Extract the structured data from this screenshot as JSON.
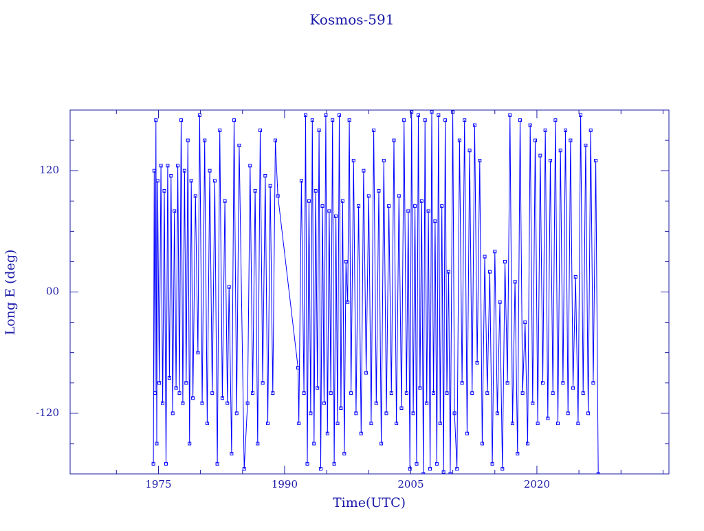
{
  "chart_data": {
    "type": "line",
    "title": "Kosmos-591",
    "xlabel": "Time(UTC)",
    "ylabel": "Long E (deg)",
    "xlim": [
      1964.5,
      2035.7
    ],
    "xticks": [
      1975,
      1990,
      2005,
      2020
    ],
    "xminorticks": [
      1970,
      1980,
      1985,
      1995,
      2000,
      2010,
      2015,
      2025,
      2030,
      2035
    ],
    "ylim": [
      -180,
      180
    ],
    "yticks": [
      -120,
      {
        "value": 0,
        "label": "00"
      },
      120
    ],
    "yminorticks": [
      -150,
      -90,
      -60,
      -30,
      30,
      60,
      90,
      150
    ],
    "x": [
      1974.4,
      1974.5,
      1974.6,
      1974.7,
      1974.8,
      1974.9,
      1975.1,
      1975.3,
      1975.5,
      1975.7,
      1975.9,
      1976.1,
      1976.3,
      1976.5,
      1976.7,
      1976.9,
      1977.1,
      1977.3,
      1977.5,
      1977.7,
      1977.9,
      1978.1,
      1978.3,
      1978.5,
      1978.7,
      1978.9,
      1979.1,
      1979.4,
      1979.7,
      1979.9,
      1980.2,
      1980.5,
      1980.8,
      1981.1,
      1981.4,
      1981.7,
      1982.0,
      1982.3,
      1982.6,
      1982.9,
      1983.2,
      1983.4,
      1983.7,
      1984.0,
      1984.3,
      1984.6,
      1985.2,
      1985.6,
      1985.9,
      1986.2,
      1986.5,
      1986.8,
      1987.1,
      1987.4,
      1987.7,
      1988.0,
      1988.3,
      1988.6,
      1988.9,
      1989.2,
      1991.6,
      1991.7,
      1992.0,
      1992.3,
      1992.5,
      1992.7,
      1992.9,
      1993.1,
      1993.3,
      1993.5,
      1993.7,
      1993.9,
      1994.1,
      1994.3,
      1994.5,
      1994.7,
      1994.9,
      1995.1,
      1995.3,
      1995.5,
      1995.7,
      1995.9,
      1996.1,
      1996.3,
      1996.5,
      1996.7,
      1996.9,
      1997.1,
      1997.3,
      1997.5,
      1997.7,
      1997.9,
      1998.2,
      1998.5,
      1998.8,
      1999.1,
      1999.4,
      1999.7,
      2000.0,
      2000.3,
      2000.6,
      2000.9,
      2001.2,
      2001.5,
      2001.8,
      2002.1,
      2002.4,
      2002.7,
      2003.0,
      2003.3,
      2003.6,
      2003.9,
      2004.2,
      2004.5,
      2004.7,
      2004.9,
      2005.1,
      2005.3,
      2005.5,
      2005.7,
      2005.9,
      2006.1,
      2006.3,
      2006.5,
      2006.7,
      2006.9,
      2007.1,
      2007.3,
      2007.5,
      2007.7,
      2007.9,
      2008.1,
      2008.3,
      2008.5,
      2008.7,
      2008.9,
      2009.1,
      2009.3,
      2009.5,
      2009.7,
      2010.0,
      2010.2,
      2010.5,
      2010.8,
      2011.1,
      2011.4,
      2011.7,
      2012.0,
      2012.3,
      2012.6,
      2012.9,
      2013.2,
      2013.5,
      2013.8,
      2014.1,
      2014.4,
      2014.7,
      2015.0,
      2015.3,
      2015.6,
      2015.9,
      2016.2,
      2016.5,
      2016.8,
      2017.1,
      2017.4,
      2017.7,
      2018.0,
      2018.3,
      2018.6,
      2018.9,
      2019.2,
      2019.5,
      2019.8,
      2020.1,
      2020.4,
      2020.7,
      2021.0,
      2021.3,
      2021.6,
      2021.9,
      2022.2,
      2022.5,
      2022.8,
      2023.1,
      2023.4,
      2023.7,
      2024.0,
      2024.3,
      2024.6,
      2024.9,
      2025.2,
      2025.5,
      2025.8,
      2026.1,
      2026.4,
      2026.7,
      2027.0,
      2027.3
    ],
    "series": [
      {
        "color": "#0000ff",
        "values": [
          -170,
          120,
          -100,
          170,
          -150,
          110,
          -90,
          125,
          -110,
          100,
          -170,
          125,
          -85,
          115,
          -120,
          80,
          -95,
          125,
          -100,
          170,
          -110,
          120,
          -90,
          150,
          -150,
          110,
          -105,
          95,
          -60,
          175,
          -110,
          150,
          -130,
          120,
          -100,
          110,
          -170,
          160,
          -105,
          90,
          -110,
          5,
          -160,
          170,
          -120,
          145,
          -175,
          -110,
          125,
          -100,
          100,
          -150,
          160,
          -90,
          115,
          -130,
          105,
          -100,
          150,
          95,
          -75,
          -130,
          110,
          -100,
          175,
          -170,
          90,
          -120,
          170,
          -150,
          100,
          -95,
          160,
          -175,
          85,
          -110,
          175,
          -140,
          80,
          -100,
          170,
          -170,
          75,
          -130,
          175,
          -115,
          90,
          -160,
          30,
          -10,
          170,
          -100,
          130,
          -120,
          85,
          -140,
          120,
          -80,
          95,
          -130,
          160,
          -110,
          100,
          -150,
          130,
          -120,
          85,
          -100,
          150,
          -130,
          95,
          -115,
          170,
          -100,
          80,
          -175,
          178,
          -120,
          85,
          -170,
          175,
          -95,
          90,
          -180,
          170,
          -110,
          80,
          -175,
          178,
          -100,
          70,
          -170,
          175,
          -130,
          85,
          -178,
          170,
          -100,
          20,
          -180,
          178,
          -120,
          -175,
          150,
          -90,
          170,
          -140,
          140,
          -100,
          165,
          -70,
          130,
          -150,
          35,
          -100,
          20,
          -170,
          40,
          -120,
          -10,
          -175,
          30,
          -90,
          175,
          -130,
          10,
          -160,
          170,
          -100,
          -30,
          -150,
          165,
          -110,
          150,
          -130,
          135,
          -90,
          160,
          -125,
          130,
          -100,
          170,
          -130,
          140,
          -90,
          160,
          -120,
          150,
          -95,
          15,
          -130,
          175,
          -100,
          145,
          -120,
          160,
          -90,
          130,
          -180
        ]
      }
    ]
  }
}
